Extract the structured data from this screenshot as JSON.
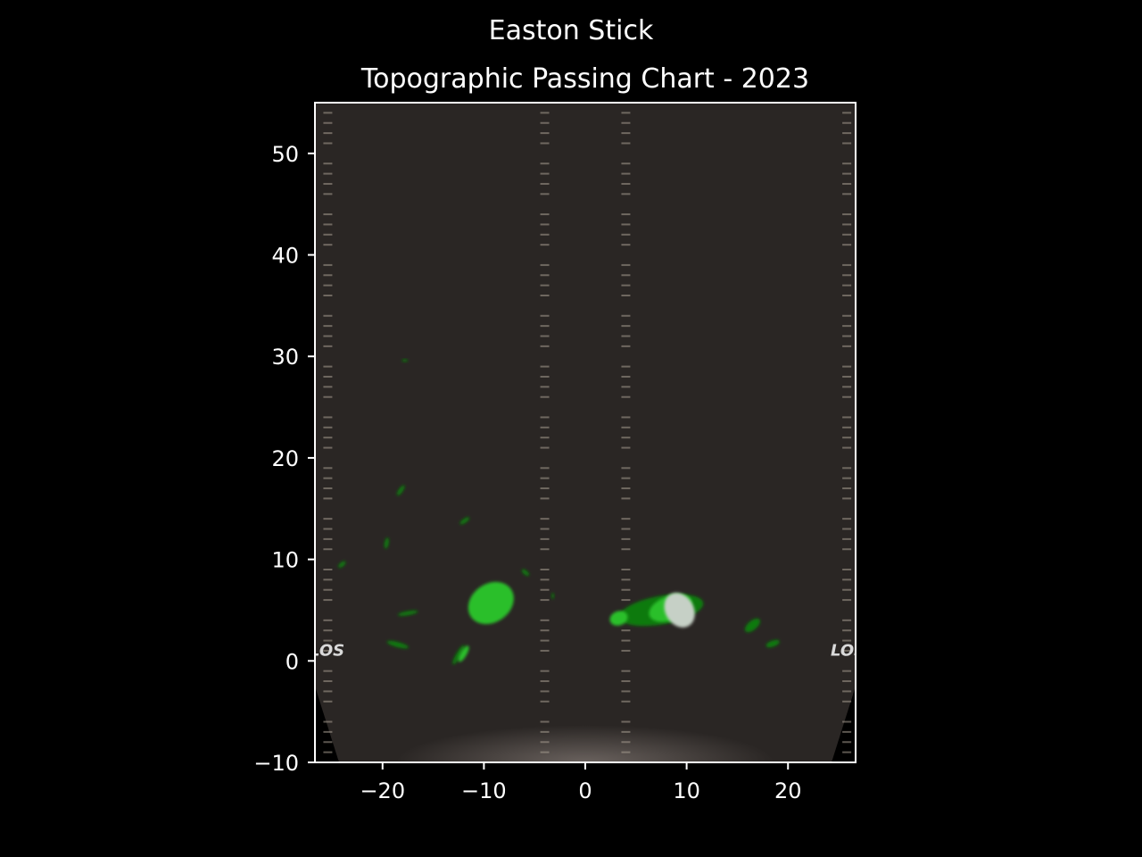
{
  "figure": {
    "suptitle": "Easton Stick",
    "title": "Topographic Passing Chart - 2023",
    "los_label": "LOS"
  },
  "colors": {
    "background": "#000000",
    "field": "#2a2624",
    "field_glow": "#5a5350",
    "yard_line": "#8a8070",
    "hash_mark": "#a89e92",
    "los_line": "#d2401a",
    "axis": "#ffffff",
    "density_low": "#0a7a0a",
    "density_mid": "#2bbf2b",
    "density_high": "#c6d0c6"
  },
  "chart_data": {
    "type": "contour",
    "description_free": true,
    "xlim": [
      -26.67,
      26.67
    ],
    "ylim": [
      -10,
      55
    ],
    "xticks": [
      -20,
      -10,
      0,
      10,
      20
    ],
    "yticks": [
      -10,
      0,
      10,
      20,
      30,
      40,
      50
    ],
    "line_of_scrimmage_y": 0.5,
    "yard_lines": [
      -5,
      5,
      10,
      15,
      20,
      25,
      30,
      35,
      40,
      45,
      50
    ],
    "hash_x": [
      -3.6,
      3.6
    ],
    "sideline_x": [
      -26,
      26
    ],
    "density_regions": [
      {
        "level": "low",
        "cx": 7.5,
        "cy": 5.0,
        "rx": 4.2,
        "ry": 1.4,
        "rot": -10
      },
      {
        "level": "mid",
        "cx": 8.4,
        "cy": 5.2,
        "rx": 2.2,
        "ry": 1.2,
        "rot": -20
      },
      {
        "level": "high",
        "cx": 9.3,
        "cy": 5.0,
        "rx": 1.4,
        "ry": 1.8,
        "rot": -30
      },
      {
        "level": "mid",
        "cx": 3.3,
        "cy": 4.2,
        "rx": 0.9,
        "ry": 0.7,
        "rot": -20
      },
      {
        "level": "mid",
        "cx": -9.3,
        "cy": 5.7,
        "rx": 2.4,
        "ry": 1.9,
        "rot": -35
      },
      {
        "level": "low",
        "cx": -12.5,
        "cy": 0.6,
        "rx": 0.25,
        "ry": 1.1,
        "rot": 30
      },
      {
        "level": "mid",
        "cx": -12.0,
        "cy": 0.7,
        "rx": 0.3,
        "ry": 0.9,
        "rot": 30
      },
      {
        "level": "low",
        "cx": -18.5,
        "cy": 1.6,
        "rx": 1.1,
        "ry": 0.25,
        "rot": 15
      },
      {
        "level": "low",
        "cx": -17.5,
        "cy": 4.7,
        "rx": 1.0,
        "ry": 0.2,
        "rot": -10
      },
      {
        "level": "low",
        "cx": -24.0,
        "cy": 9.5,
        "rx": 0.45,
        "ry": 0.2,
        "rot": -40
      },
      {
        "level": "low",
        "cx": -19.6,
        "cy": 11.6,
        "rx": 0.2,
        "ry": 0.55,
        "rot": 10
      },
      {
        "level": "low",
        "cx": -18.2,
        "cy": 16.8,
        "rx": 0.2,
        "ry": 0.6,
        "rot": 35
      },
      {
        "level": "low",
        "cx": -11.9,
        "cy": 13.8,
        "rx": 0.55,
        "ry": 0.2,
        "rot": -35
      },
      {
        "level": "low",
        "cx": -17.8,
        "cy": 29.6,
        "rx": 0.3,
        "ry": 0.12,
        "rot": 0
      },
      {
        "level": "low",
        "cx": -5.9,
        "cy": 8.7,
        "rx": 0.45,
        "ry": 0.2,
        "rot": 40
      },
      {
        "level": "low",
        "cx": -3.2,
        "cy": 6.4,
        "rx": 0.12,
        "ry": 0.3,
        "rot": 0
      },
      {
        "level": "low",
        "cx": 16.5,
        "cy": 3.5,
        "rx": 0.9,
        "ry": 0.45,
        "rot": -40
      },
      {
        "level": "low",
        "cx": 18.5,
        "cy": 1.7,
        "rx": 0.7,
        "ry": 0.3,
        "rot": -20
      }
    ]
  }
}
